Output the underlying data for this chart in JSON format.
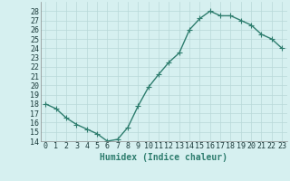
{
  "x": [
    0,
    1,
    2,
    3,
    4,
    5,
    6,
    7,
    8,
    9,
    10,
    11,
    12,
    13,
    14,
    15,
    16,
    17,
    18,
    19,
    20,
    21,
    22,
    23
  ],
  "y": [
    18,
    17.5,
    16.5,
    15.8,
    15.3,
    14.8,
    14.0,
    14.2,
    15.5,
    17.8,
    19.8,
    21.2,
    22.5,
    23.5,
    26.0,
    27.2,
    28.0,
    27.5,
    27.5,
    27.0,
    26.5,
    25.5,
    25.0,
    24.0
  ],
  "line_color": "#2e7d6e",
  "marker": "+",
  "marker_size": 4,
  "bg_color": "#d6f0f0",
  "grid_color": "#b8d8d8",
  "xlabel": "Humidex (Indice chaleur)",
  "ylim": [
    14,
    29
  ],
  "xlim": [
    -0.5,
    23.5
  ],
  "yticks": [
    14,
    15,
    16,
    17,
    18,
    19,
    20,
    21,
    22,
    23,
    24,
    25,
    26,
    27,
    28
  ],
  "xticks": [
    0,
    1,
    2,
    3,
    4,
    5,
    6,
    7,
    8,
    9,
    10,
    11,
    12,
    13,
    14,
    15,
    16,
    17,
    18,
    19,
    20,
    21,
    22,
    23
  ],
  "tick_label_fontsize": 6,
  "xlabel_fontsize": 7,
  "line_width": 1.0
}
